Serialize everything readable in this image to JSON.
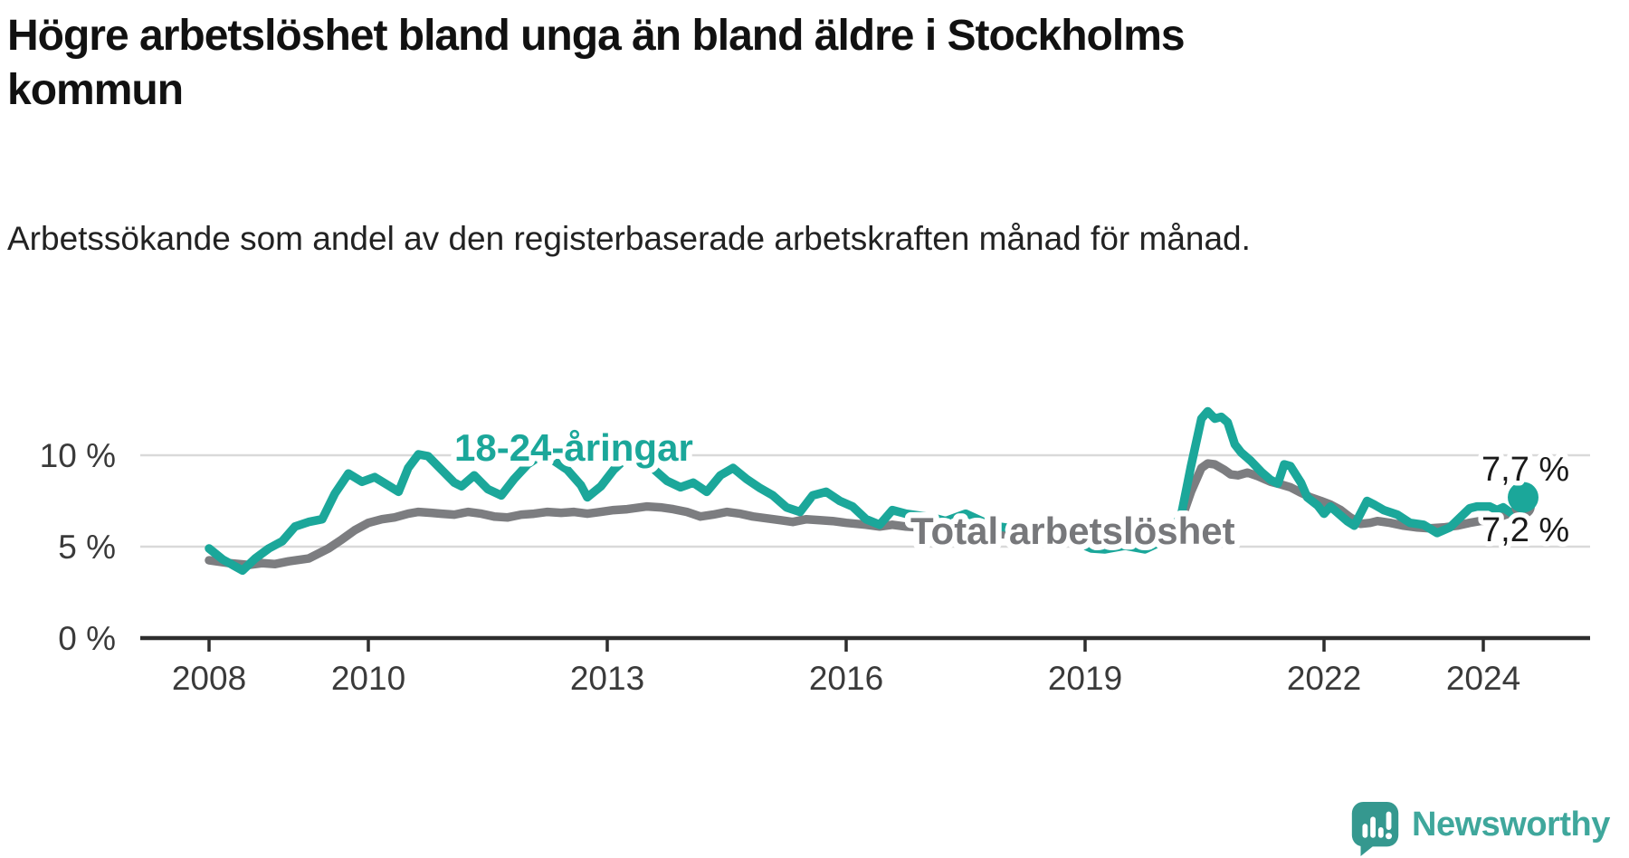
{
  "header": {
    "title": "Högre arbetslöshet bland unga än bland äldre i Stockholms kommun",
    "subtitle": "Arbetssökande som andel av den registerbaserade arbetskraften månad för månad."
  },
  "colors": {
    "accent_teal": "#1ba79a",
    "line_gray": "#7c7d80",
    "label_gray": "#77787b",
    "grid": "#d9d9d9",
    "axis": "#2e2e2e",
    "tick_text": "#3a3a3a",
    "end_label_text": "#1a1a1a",
    "logo_teal": "#3fa79c",
    "logo_bubble": "#35988f"
  },
  "chart_data": {
    "type": "line",
    "title": "Högre arbetslöshet bland unga än bland äldre i Stockholms kommun",
    "subtitle": "Arbetssökande som andel av den registerbaserade arbetskraften månad för månad.",
    "unit": "%",
    "grid": true,
    "legend_position": "inline-labels",
    "x_axis": {
      "min": 2007.15,
      "max": 2025.35,
      "tick_years": [
        2008,
        2010,
        2013,
        2016,
        2019,
        2022,
        2024
      ],
      "tick_labels": [
        "2008",
        "2010",
        "2013",
        "2016",
        "2019",
        "2022",
        "2024"
      ]
    },
    "y_axis": {
      "min": 0,
      "max": 12.6,
      "ticks": [
        {
          "value": 0,
          "label": "0 %"
        },
        {
          "value": 5,
          "label": "5 %"
        },
        {
          "value": 10,
          "label": "10 %"
        }
      ]
    },
    "series": [
      {
        "name": "Total arbetslöshet",
        "color": "#7c7d80",
        "end_label": "7,2 %",
        "last_value": 7.2,
        "points": [
          [
            2008.0,
            4.25
          ],
          [
            2008.25,
            4.1
          ],
          [
            2008.5,
            4.0
          ],
          [
            2008.67,
            4.1
          ],
          [
            2008.83,
            4.05
          ],
          [
            2009.0,
            4.2
          ],
          [
            2009.25,
            4.35
          ],
          [
            2009.5,
            4.9
          ],
          [
            2009.67,
            5.4
          ],
          [
            2009.83,
            5.9
          ],
          [
            2010.0,
            6.3
          ],
          [
            2010.17,
            6.5
          ],
          [
            2010.33,
            6.6
          ],
          [
            2010.5,
            6.8
          ],
          [
            2010.63,
            6.9
          ],
          [
            2010.79,
            6.85
          ],
          [
            2010.92,
            6.8
          ],
          [
            2011.08,
            6.75
          ],
          [
            2011.25,
            6.9
          ],
          [
            2011.42,
            6.8
          ],
          [
            2011.58,
            6.65
          ],
          [
            2011.75,
            6.6
          ],
          [
            2011.92,
            6.75
          ],
          [
            2012.08,
            6.8
          ],
          [
            2012.25,
            6.9
          ],
          [
            2012.42,
            6.85
          ],
          [
            2012.58,
            6.9
          ],
          [
            2012.75,
            6.8
          ],
          [
            2012.92,
            6.9
          ],
          [
            2013.08,
            7.0
          ],
          [
            2013.25,
            7.05
          ],
          [
            2013.5,
            7.2
          ],
          [
            2013.67,
            7.15
          ],
          [
            2013.83,
            7.05
          ],
          [
            2014.0,
            6.9
          ],
          [
            2014.17,
            6.65
          ],
          [
            2014.33,
            6.75
          ],
          [
            2014.5,
            6.9
          ],
          [
            2014.67,
            6.8
          ],
          [
            2014.83,
            6.65
          ],
          [
            2015.0,
            6.55
          ],
          [
            2015.17,
            6.45
          ],
          [
            2015.33,
            6.35
          ],
          [
            2015.5,
            6.5
          ],
          [
            2015.67,
            6.45
          ],
          [
            2015.83,
            6.4
          ],
          [
            2016.0,
            6.3
          ],
          [
            2016.25,
            6.2
          ],
          [
            2016.42,
            6.1
          ],
          [
            2016.58,
            6.2
          ],
          [
            2016.75,
            6.1
          ],
          [
            2016.92,
            6.05
          ],
          [
            2017.17,
            6.0
          ],
          [
            2017.42,
            5.9
          ],
          [
            2017.67,
            5.8
          ],
          [
            2017.92,
            5.7
          ],
          [
            2018.17,
            5.6
          ],
          [
            2018.42,
            5.55
          ],
          [
            2018.67,
            5.5
          ],
          [
            2018.92,
            5.45
          ],
          [
            2019.17,
            5.4
          ],
          [
            2019.42,
            5.35
          ],
          [
            2019.67,
            5.4
          ],
          [
            2019.92,
            5.5
          ],
          [
            2020.08,
            5.7
          ],
          [
            2020.21,
            6.5
          ],
          [
            2020.33,
            8.0
          ],
          [
            2020.46,
            9.3
          ],
          [
            2020.54,
            9.55
          ],
          [
            2020.63,
            9.5
          ],
          [
            2020.75,
            9.2
          ],
          [
            2020.83,
            8.95
          ],
          [
            2020.92,
            8.9
          ],
          [
            2021.04,
            9.05
          ],
          [
            2021.17,
            8.85
          ],
          [
            2021.33,
            8.55
          ],
          [
            2021.46,
            8.4
          ],
          [
            2021.58,
            8.25
          ],
          [
            2021.71,
            7.95
          ],
          [
            2021.83,
            7.7
          ],
          [
            2021.96,
            7.5
          ],
          [
            2022.08,
            7.3
          ],
          [
            2022.21,
            7.0
          ],
          [
            2022.33,
            6.6
          ],
          [
            2022.46,
            6.25
          ],
          [
            2022.58,
            6.3
          ],
          [
            2022.67,
            6.4
          ],
          [
            2022.83,
            6.3
          ],
          [
            2023.0,
            6.15
          ],
          [
            2023.17,
            6.05
          ],
          [
            2023.33,
            6.0
          ],
          [
            2023.5,
            6.05
          ],
          [
            2023.67,
            6.15
          ],
          [
            2023.83,
            6.3
          ],
          [
            2023.96,
            6.4
          ],
          [
            2024.08,
            6.45
          ],
          [
            2024.25,
            6.7
          ],
          [
            2024.38,
            6.9
          ],
          [
            2024.5,
            7.2
          ]
        ]
      },
      {
        "name": "18-24-åringar",
        "color": "#1ba79a",
        "end_label": "7,7 %",
        "last_value": 7.7,
        "points": [
          [
            2008.0,
            4.9
          ],
          [
            2008.17,
            4.3
          ],
          [
            2008.42,
            3.7
          ],
          [
            2008.58,
            4.35
          ],
          [
            2008.75,
            4.9
          ],
          [
            2008.92,
            5.3
          ],
          [
            2009.08,
            6.1
          ],
          [
            2009.25,
            6.35
          ],
          [
            2009.42,
            6.5
          ],
          [
            2009.58,
            7.9
          ],
          [
            2009.75,
            9.0
          ],
          [
            2009.92,
            8.55
          ],
          [
            2010.08,
            8.8
          ],
          [
            2010.25,
            8.35
          ],
          [
            2010.38,
            8.0
          ],
          [
            2010.5,
            9.3
          ],
          [
            2010.63,
            10.05
          ],
          [
            2010.75,
            9.95
          ],
          [
            2010.92,
            9.2
          ],
          [
            2011.08,
            8.5
          ],
          [
            2011.17,
            8.3
          ],
          [
            2011.33,
            8.9
          ],
          [
            2011.5,
            8.15
          ],
          [
            2011.67,
            7.8
          ],
          [
            2011.83,
            8.7
          ],
          [
            2012.0,
            9.5
          ],
          [
            2012.17,
            10.0
          ],
          [
            2012.33,
            9.7
          ],
          [
            2012.5,
            9.2
          ],
          [
            2012.67,
            8.35
          ],
          [
            2012.75,
            7.7
          ],
          [
            2012.92,
            8.3
          ],
          [
            2013.08,
            9.2
          ],
          [
            2013.25,
            9.9
          ],
          [
            2013.42,
            9.5
          ],
          [
            2013.58,
            9.25
          ],
          [
            2013.75,
            8.6
          ],
          [
            2013.92,
            8.25
          ],
          [
            2014.08,
            8.5
          ],
          [
            2014.25,
            8.0
          ],
          [
            2014.42,
            8.9
          ],
          [
            2014.58,
            9.3
          ],
          [
            2014.75,
            8.7
          ],
          [
            2014.92,
            8.2
          ],
          [
            2015.08,
            7.8
          ],
          [
            2015.25,
            7.15
          ],
          [
            2015.42,
            6.9
          ],
          [
            2015.58,
            7.8
          ],
          [
            2015.75,
            8.0
          ],
          [
            2015.92,
            7.5
          ],
          [
            2016.08,
            7.2
          ],
          [
            2016.25,
            6.5
          ],
          [
            2016.42,
            6.2
          ],
          [
            2016.58,
            7.0
          ],
          [
            2016.75,
            6.8
          ],
          [
            2016.92,
            6.7
          ],
          [
            2017.08,
            6.6
          ],
          [
            2017.25,
            6.4
          ],
          [
            2017.5,
            6.8
          ],
          [
            2017.75,
            6.3
          ],
          [
            2017.92,
            6.1
          ],
          [
            2018.08,
            6.0
          ],
          [
            2018.25,
            5.8
          ],
          [
            2018.5,
            5.9
          ],
          [
            2018.75,
            5.5
          ],
          [
            2018.92,
            5.2
          ],
          [
            2019.08,
            4.9
          ],
          [
            2019.25,
            4.85
          ],
          [
            2019.5,
            5.05
          ],
          [
            2019.75,
            4.85
          ],
          [
            2019.92,
            5.2
          ],
          [
            2020.08,
            5.7
          ],
          [
            2020.21,
            6.8
          ],
          [
            2020.33,
            9.4
          ],
          [
            2020.46,
            12.0
          ],
          [
            2020.54,
            12.4
          ],
          [
            2020.63,
            12.0
          ],
          [
            2020.71,
            12.1
          ],
          [
            2020.79,
            11.8
          ],
          [
            2020.88,
            10.6
          ],
          [
            2020.96,
            10.15
          ],
          [
            2021.08,
            9.7
          ],
          [
            2021.21,
            9.1
          ],
          [
            2021.33,
            8.65
          ],
          [
            2021.42,
            8.45
          ],
          [
            2021.5,
            9.5
          ],
          [
            2021.58,
            9.4
          ],
          [
            2021.71,
            8.5
          ],
          [
            2021.79,
            7.7
          ],
          [
            2021.92,
            7.25
          ],
          [
            2022.0,
            6.8
          ],
          [
            2022.08,
            7.2
          ],
          [
            2022.17,
            6.85
          ],
          [
            2022.29,
            6.4
          ],
          [
            2022.38,
            6.15
          ],
          [
            2022.54,
            7.5
          ],
          [
            2022.63,
            7.3
          ],
          [
            2022.75,
            7.0
          ],
          [
            2022.92,
            6.75
          ],
          [
            2023.08,
            6.3
          ],
          [
            2023.25,
            6.2
          ],
          [
            2023.42,
            5.75
          ],
          [
            2023.58,
            6.05
          ],
          [
            2023.71,
            6.6
          ],
          [
            2023.83,
            7.1
          ],
          [
            2023.92,
            7.2
          ],
          [
            2024.08,
            7.2
          ],
          [
            2024.17,
            7.0
          ],
          [
            2024.25,
            7.15
          ],
          [
            2024.33,
            6.9
          ],
          [
            2024.42,
            6.65
          ],
          [
            2024.5,
            7.7
          ]
        ]
      }
    ]
  },
  "branding": {
    "name": "Newsworthy"
  }
}
